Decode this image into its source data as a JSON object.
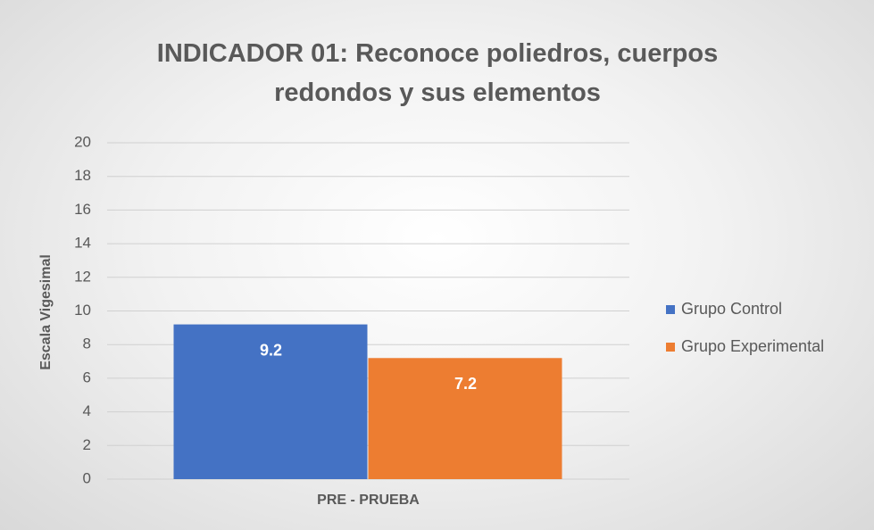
{
  "chart_data": {
    "type": "bar",
    "title": "INDICADOR 01: Reconoce poliedros, cuerpos redondos y sus elementos",
    "y_label": "Escala Vigesimal",
    "categories": [
      "PRE - PRUEBA"
    ],
    "series": [
      {
        "name": "Grupo Control",
        "color": "#4472c4",
        "values": [
          9.2
        ]
      },
      {
        "name": "Grupo Experimental",
        "color": "#ed7d31",
        "values": [
          7.2
        ]
      }
    ],
    "ylim": [
      0,
      20
    ],
    "yticks": [
      0,
      2,
      4,
      6,
      8,
      10,
      12,
      14,
      16,
      18,
      20
    ],
    "grid": true,
    "legend": "right",
    "data_labels": true
  }
}
